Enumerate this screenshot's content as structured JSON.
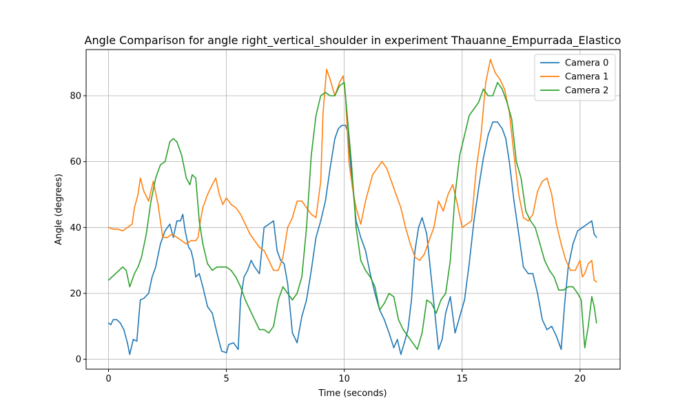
{
  "chart_data": {
    "type": "line",
    "title": "Angle Comparison for angle right_vertical_shoulder in experiment Thauanne_Empurrada_Elastico",
    "xlabel": "Time (seconds)",
    "ylabel": "Angle (degrees)",
    "xlim": [
      -0.95,
      21.7
    ],
    "ylim": [
      -3,
      94
    ],
    "xticks": [
      0,
      5,
      10,
      15,
      20
    ],
    "yticks": [
      0,
      20,
      40,
      60,
      80
    ],
    "grid": true,
    "legend_position": "top-right",
    "series": [
      {
        "name": "Camera 0",
        "color": "#1f77b4",
        "x": [
          0,
          0.1,
          0.2,
          0.35,
          0.5,
          0.65,
          0.8,
          0.9,
          0.95,
          1.05,
          1.2,
          1.3,
          1.35,
          1.5,
          1.7,
          1.85,
          2.0,
          2.2,
          2.4,
          2.6,
          2.75,
          2.9,
          3.05,
          3.15,
          3.25,
          3.4,
          3.5,
          3.6,
          3.7,
          3.85,
          4.0,
          4.2,
          4.4,
          4.6,
          4.8,
          5.0,
          5.1,
          5.3,
          5.5,
          5.6,
          5.75,
          5.9,
          6.05,
          6.2,
          6.4,
          6.6,
          6.8,
          7.0,
          7.15,
          7.3,
          7.45,
          7.6,
          7.8,
          8.0,
          8.2,
          8.4,
          8.6,
          8.8,
          9.0,
          9.2,
          9.4,
          9.6,
          9.75,
          9.9,
          10.05,
          10.15,
          10.3,
          10.5,
          10.7,
          10.9,
          11.1,
          11.3,
          11.5,
          11.7,
          11.9,
          12.1,
          12.25,
          12.4,
          12.55,
          12.7,
          12.85,
          13.0,
          13.15,
          13.3,
          13.5,
          13.7,
          13.9,
          14.0,
          14.15,
          14.3,
          14.5,
          14.7,
          14.9,
          15.1,
          15.3,
          15.5,
          15.7,
          15.9,
          16.1,
          16.3,
          16.5,
          16.7,
          16.85,
          17.0,
          17.2,
          17.4,
          17.6,
          17.8,
          18.0,
          18.2,
          18.4,
          18.6,
          18.8,
          19.0,
          19.2,
          19.35,
          19.5,
          19.7,
          19.9,
          20.1,
          20.3,
          20.5,
          20.6,
          20.7
        ],
        "y": [
          11,
          10.5,
          12,
          12,
          11,
          9,
          5,
          1.5,
          3,
          6,
          5.5,
          14,
          18,
          18.5,
          20,
          25,
          28,
          35,
          39,
          41,
          37,
          42,
          42,
          44,
          39,
          34,
          33,
          30,
          25,
          26,
          22,
          16,
          14,
          8,
          2.5,
          2,
          4.5,
          5,
          3,
          18,
          25,
          27,
          30,
          28,
          26,
          40,
          41,
          42,
          33,
          30,
          29,
          23,
          8,
          5,
          13,
          18,
          27,
          37,
          42,
          48,
          58,
          67,
          70,
          71,
          71,
          69,
          57,
          42,
          37,
          33,
          26,
          20,
          15,
          12,
          8,
          3.5,
          6,
          1.5,
          5,
          9,
          18,
          33,
          40,
          43,
          38,
          24,
          10,
          3,
          6,
          14,
          19,
          8,
          13,
          18,
          29,
          42,
          52,
          61,
          68,
          72,
          72,
          70,
          67,
          60,
          48,
          38,
          28,
          26,
          26,
          20,
          12,
          9,
          10,
          7,
          3,
          17,
          28,
          35,
          39,
          40,
          41,
          42,
          38,
          37
        ]
      },
      {
        "name": "Camera 1",
        "color": "#ff7f0e",
        "x": [
          0,
          0.2,
          0.4,
          0.6,
          0.8,
          1.0,
          1.1,
          1.25,
          1.35,
          1.5,
          1.7,
          1.9,
          2.1,
          2.3,
          2.5,
          2.7,
          2.9,
          3.1,
          3.3,
          3.5,
          3.7,
          3.8,
          3.9,
          4.0,
          4.2,
          4.4,
          4.55,
          4.7,
          4.85,
          5.0,
          5.2,
          5.4,
          5.6,
          5.8,
          6.0,
          6.2,
          6.4,
          6.6,
          6.8,
          7.0,
          7.2,
          7.4,
          7.6,
          7.8,
          8.0,
          8.2,
          8.4,
          8.6,
          8.8,
          9.0,
          9.1,
          9.25,
          9.4,
          9.6,
          9.8,
          9.95,
          10.05,
          10.2,
          10.35,
          10.5,
          10.7,
          10.9,
          11.05,
          11.2,
          11.4,
          11.6,
          11.8,
          12.0,
          12.2,
          12.4,
          12.6,
          12.8,
          13.0,
          13.2,
          13.4,
          13.6,
          13.8,
          14.0,
          14.2,
          14.4,
          14.6,
          14.8,
          15.0,
          15.2,
          15.4,
          15.6,
          15.8,
          16.0,
          16.2,
          16.4,
          16.6,
          16.8,
          17.0,
          17.2,
          17.4,
          17.6,
          17.8,
          18.0,
          18.2,
          18.4,
          18.6,
          18.8,
          19.0,
          19.2,
          19.4,
          19.6,
          19.8,
          20.0,
          20.1,
          20.2,
          20.35,
          20.5,
          20.6,
          20.7
        ],
        "y": [
          40,
          39.5,
          39.5,
          39,
          40,
          41,
          46,
          50,
          55,
          51,
          48,
          54,
          47,
          37,
          37,
          38,
          37,
          36,
          35,
          36,
          36,
          37,
          42,
          46,
          50,
          53,
          55,
          50,
          47,
          49,
          47,
          46,
          44,
          41,
          38,
          36,
          34,
          33,
          30,
          27,
          27,
          31,
          40,
          43,
          48,
          48,
          46,
          44,
          43,
          54,
          75,
          88,
          85,
          80,
          84,
          86,
          80,
          60,
          52,
          46,
          41,
          48,
          52,
          56,
          58,
          60,
          58,
          54,
          50,
          46,
          40,
          35,
          31,
          30,
          32,
          36,
          40,
          48,
          45,
          50,
          53,
          47,
          40,
          41,
          42,
          58,
          68,
          84,
          91,
          87,
          85,
          82,
          75,
          62,
          50,
          43,
          42,
          44,
          51,
          54,
          55,
          50,
          41,
          35,
          30,
          27,
          27,
          30,
          25,
          26,
          29,
          30,
          24,
          23.5
        ]
      },
      {
        "name": "Camera 2",
        "color": "#2ca02c",
        "x": [
          0,
          0.15,
          0.3,
          0.45,
          0.6,
          0.75,
          0.9,
          1.0,
          1.1,
          1.25,
          1.4,
          1.6,
          1.8,
          2.0,
          2.2,
          2.4,
          2.6,
          2.75,
          2.9,
          3.1,
          3.3,
          3.45,
          3.55,
          3.7,
          3.85,
          4.0,
          4.2,
          4.4,
          4.6,
          4.8,
          5.0,
          5.2,
          5.4,
          5.6,
          5.8,
          6.0,
          6.2,
          6.4,
          6.6,
          6.8,
          7.0,
          7.2,
          7.4,
          7.6,
          7.8,
          8.0,
          8.2,
          8.4,
          8.6,
          8.8,
          9.0,
          9.2,
          9.4,
          9.6,
          9.8,
          10.0,
          10.15,
          10.3,
          10.5,
          10.7,
          10.9,
          11.1,
          11.3,
          11.5,
          11.7,
          11.9,
          12.1,
          12.3,
          12.5,
          12.7,
          12.9,
          13.1,
          13.3,
          13.5,
          13.7,
          13.9,
          14.1,
          14.3,
          14.5,
          14.7,
          14.9,
          15.1,
          15.3,
          15.5,
          15.7,
          15.9,
          16.1,
          16.3,
          16.5,
          16.7,
          16.9,
          17.1,
          17.3,
          17.5,
          17.7,
          17.9,
          18.1,
          18.3,
          18.5,
          18.7,
          18.9,
          19.1,
          19.3,
          19.5,
          19.7,
          19.9,
          20.05,
          20.2,
          20.35,
          20.5,
          20.6,
          20.7
        ],
        "y": [
          24,
          25,
          26,
          27,
          28,
          27,
          22,
          24,
          26,
          28,
          31,
          38,
          48,
          55,
          59,
          60,
          66,
          67,
          66,
          62,
          55,
          53,
          56,
          55,
          42,
          35,
          29,
          27,
          28,
          28,
          28,
          27,
          25,
          22,
          18,
          15,
          12,
          9,
          9,
          8,
          10,
          18,
          22,
          20,
          18,
          20,
          25,
          40,
          62,
          74,
          80,
          81,
          80,
          80,
          83,
          84,
          72,
          60,
          40,
          30,
          27,
          25,
          22,
          15,
          17,
          20,
          19,
          12,
          9,
          7,
          5,
          3,
          8,
          18,
          17,
          14,
          18,
          20,
          30,
          50,
          62,
          68,
          74,
          76,
          78,
          82,
          80,
          80,
          84,
          82,
          78,
          73,
          60,
          55,
          45,
          42,
          40,
          35,
          30,
          27,
          25,
          21,
          21,
          22,
          22,
          20,
          18,
          3.5,
          10,
          19,
          16,
          11
        ]
      }
    ]
  }
}
